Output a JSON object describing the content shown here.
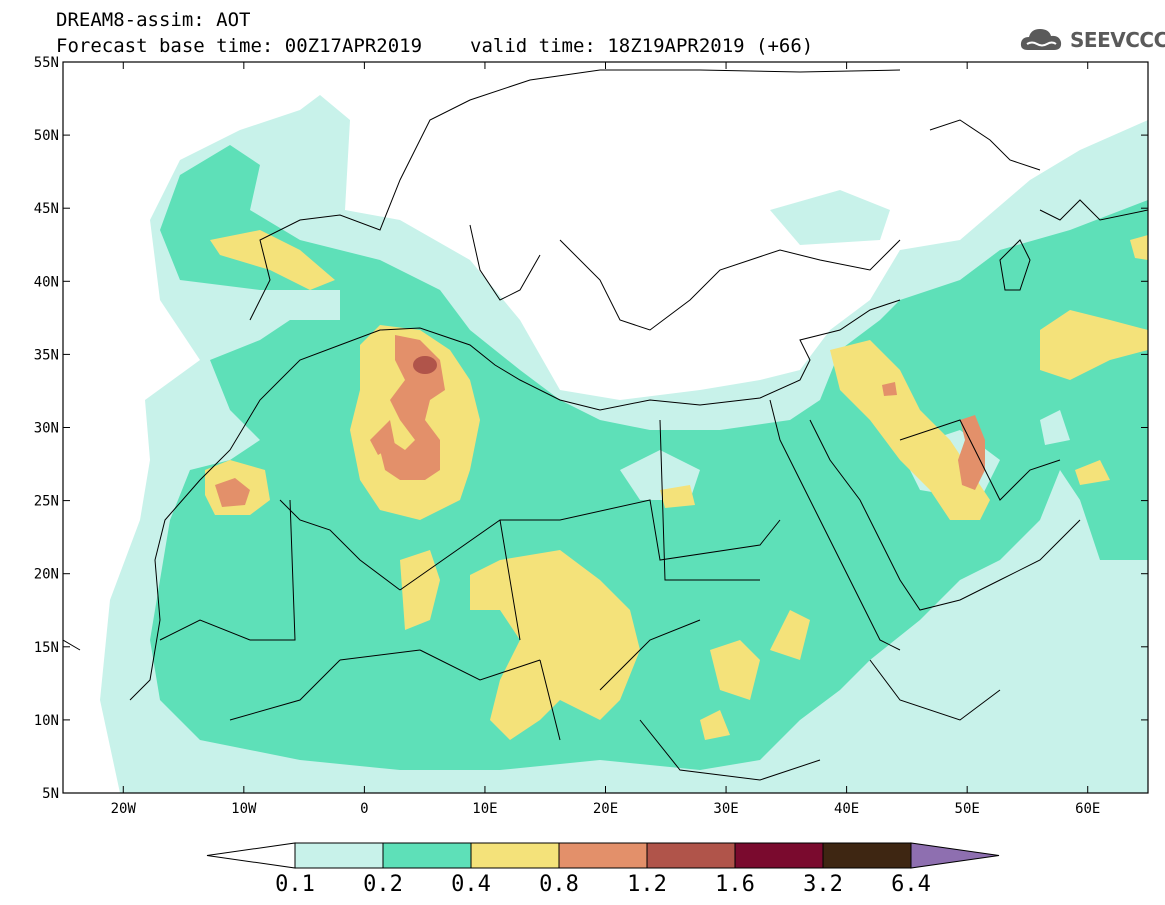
{
  "header": {
    "title_line1": "DREAM8-assim: AOT",
    "title_line2_base": "Forecast base time: 00Z17APR2019",
    "title_line2_valid": "valid time: 18Z19APR2019 (+66)",
    "logo_text": "SEEVCCC"
  },
  "axes": {
    "lat_labels": [
      "55N",
      "50N",
      "45N",
      "40N",
      "35N",
      "30N",
      "25N",
      "20N",
      "15N",
      "10N",
      "5N"
    ],
    "lat_values": [
      55,
      50,
      45,
      40,
      35,
      30,
      25,
      20,
      15,
      10,
      5
    ],
    "lon_labels": [
      "20W",
      "10W",
      "0",
      "10E",
      "20E",
      "30E",
      "40E",
      "50E",
      "60E"
    ],
    "lon_values": [
      -20,
      -10,
      0,
      10,
      20,
      30,
      40,
      50,
      60
    ],
    "lon_range": [
      -25,
      65
    ],
    "lat_range": [
      5,
      55
    ]
  },
  "colorbar": {
    "labels": [
      "0.1",
      "0.2",
      "0.4",
      "0.8",
      "1.2",
      "1.6",
      "3.2",
      "6.4"
    ],
    "colors": [
      "#c8f2ea",
      "#5ee0b8",
      "#f4e27a",
      "#e3906a",
      "#b0544a",
      "#7a0a2e",
      "#3e2612"
    ],
    "below_color": "#ffffff",
    "above_color": "#8e6fb0"
  },
  "field_colors": {
    "level1": "#c8f2ea",
    "level2": "#5ee0b8",
    "level3": "#f4e27a",
    "level4": "#e3906a",
    "level5": "#b0544a"
  }
}
